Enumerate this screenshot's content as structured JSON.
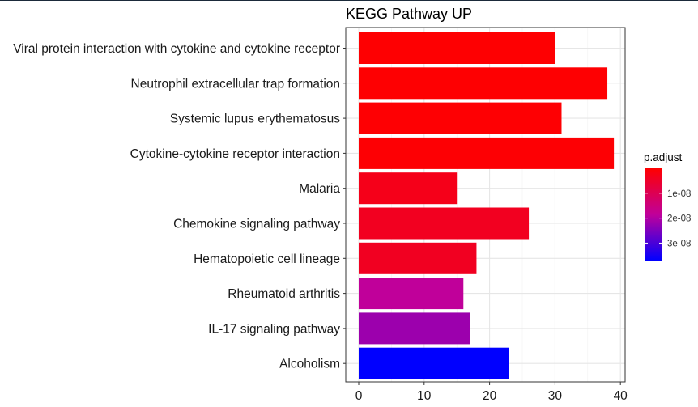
{
  "chart_data": {
    "type": "bar",
    "orientation": "horizontal",
    "title": "KEGG Pathway UP",
    "xlabel": "",
    "ylabel": "",
    "xlim": [
      0,
      41
    ],
    "xticks": [
      0,
      10,
      20,
      30,
      40
    ],
    "grid": true,
    "categories": [
      "Viral protein interaction with cytokine and cytokine receptor",
      "Neutrophil extracellular trap formation",
      "Systemic lupus erythematosus",
      "Cytokine-cytokine receptor interaction",
      "Malaria",
      "Chemokine signaling pathway",
      "Hematopoietic cell lineage",
      "Rheumatoid arthritis",
      "IL-17 signaling pathway",
      "Alcoholism"
    ],
    "values": [
      30,
      38,
      31,
      39,
      15,
      26,
      18,
      16,
      17,
      23
    ],
    "p_adjust": [
      2e-10,
      3e-10,
      4e-10,
      5e-10,
      3e-09,
      3.8e-09,
      4e-09,
      1.85e-08,
      2.2e-08,
      3.7e-08
    ],
    "legend": {
      "title": "p.adjust",
      "placement": "right",
      "ticks": [
        1e-08,
        2e-08,
        3e-08
      ],
      "tick_labels": [
        "1e-08",
        "2e-08",
        "3e-08"
      ],
      "range": [
        0,
        3.7e-08
      ],
      "color_low": "#FF0000",
      "color_high": "#0000FF"
    }
  }
}
